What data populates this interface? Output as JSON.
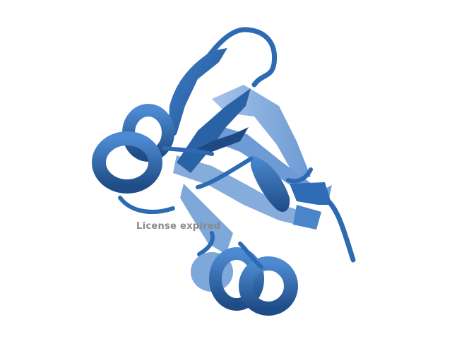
{
  "watermark": {
    "text": "License expired"
  },
  "colors": {
    "background": "#ffffff",
    "ribbon_front": "#2d6ab4",
    "ribbon_dark": "#1f4f8a",
    "ribbon_light": "#5b8fcf",
    "ribbon_back": "#7da7d9",
    "watermark": "#8a8a8a"
  }
}
